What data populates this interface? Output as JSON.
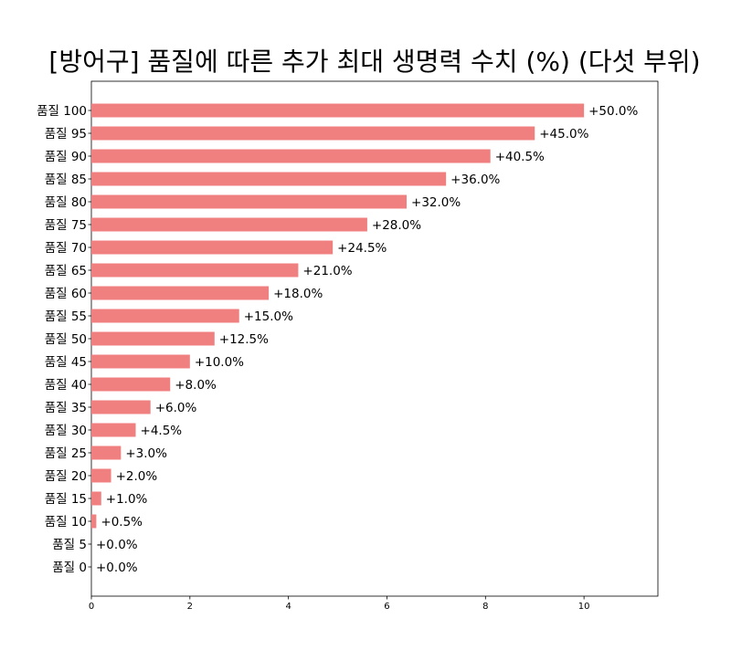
{
  "chart_data": {
    "type": "bar",
    "orientation": "horizontal",
    "title": "[방어구]  품질에 따른 추가 최대 생명력 수치 (%) (다섯 부위)",
    "xlabel": "",
    "ylabel": "",
    "xlim": [
      0,
      11.5
    ],
    "xticks": [
      "0",
      "2",
      "4",
      "6",
      "8",
      "10"
    ],
    "grid": false,
    "bar_color": "#f08080",
    "categories": [
      "품질 100",
      "품질 95",
      "품질 90",
      "품질 85",
      "품질 80",
      "품질 75",
      "품질 70",
      "품질 65",
      "품질 60",
      "품질 55",
      "품질 50",
      "품질 45",
      "품질 40",
      "품질 35",
      "품질 30",
      "품질 25",
      "품질 20",
      "품질 15",
      "품질 10",
      "품질 5",
      "품질 0"
    ],
    "values": [
      10.0,
      9.0,
      8.1,
      7.2,
      6.4,
      5.6,
      4.9,
      4.2,
      3.6,
      3.0,
      2.5,
      2.0,
      1.6,
      1.2,
      0.9,
      0.6,
      0.4,
      0.2,
      0.1,
      0.0,
      0.0
    ],
    "data_labels": [
      "+50.0%",
      "+45.0%",
      "+40.5%",
      "+36.0%",
      "+32.0%",
      "+28.0%",
      "+24.5%",
      "+21.0%",
      "+18.0%",
      "+15.0%",
      "+12.5%",
      "+10.0%",
      "+8.0%",
      "+6.0%",
      "+4.5%",
      "+3.0%",
      "+2.0%",
      "+1.0%",
      "+0.5%",
      "+0.0%",
      "+0.0%"
    ]
  }
}
